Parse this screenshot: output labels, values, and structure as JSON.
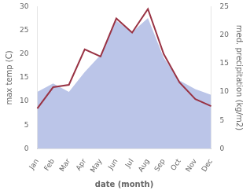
{
  "chart_data": {
    "type": "line",
    "categories": [
      "Jan",
      "Feb",
      "Mar",
      "Apr",
      "May",
      "Jun",
      "Jul",
      "Aug",
      "Sep",
      "Oct",
      "Nov",
      "Dec"
    ],
    "xlabel": "date (month)",
    "ylabel": "max temp (C)",
    "y2label": "med. precipitation (kg/m2)",
    "ylim": [
      0,
      30
    ],
    "yticks": [
      0,
      5,
      10,
      15,
      20,
      25,
      30
    ],
    "y2lim": [
      0,
      25
    ],
    "y2ticks": [
      0,
      5,
      10,
      15,
      20,
      25
    ],
    "grid": false,
    "series": [
      {
        "type": "area",
        "color": "#bbc5e8",
        "axis": "y2",
        "values": [
          10.0,
          11.5,
          10.0,
          13.5,
          16.5,
          22.5,
          20.5,
          23.0,
          16.0,
          12.0,
          10.5,
          9.5
        ]
      },
      {
        "type": "line",
        "color": "#993344",
        "values": [
          8.5,
          13.0,
          13.5,
          21.0,
          19.5,
          27.5,
          24.5,
          29.5,
          20.0,
          14.0,
          10.5,
          9.0
        ]
      }
    ]
  }
}
